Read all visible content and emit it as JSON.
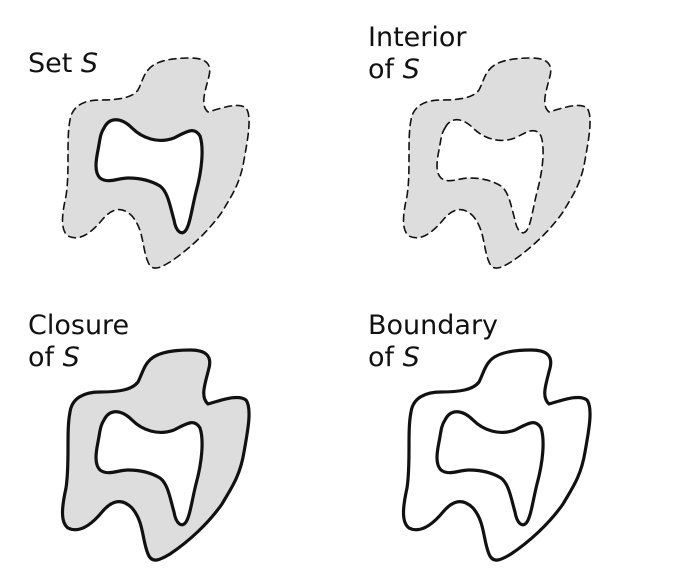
{
  "colors": {
    "fill": "#dddddd",
    "stroke": "#111111",
    "background": "#ffffff"
  },
  "panels": [
    {
      "id": "set",
      "label_lines": [
        {
          "text": "Set ",
          "symbol": "S"
        }
      ],
      "outer_boundary": "dashed",
      "hole_boundary": "solid",
      "filled": true
    },
    {
      "id": "interior",
      "label_lines": [
        {
          "text": "Interior",
          "symbol": ""
        },
        {
          "text": "of ",
          "symbol": "S"
        }
      ],
      "outer_boundary": "dashed",
      "hole_boundary": "dashed",
      "filled": true
    },
    {
      "id": "closure",
      "label_lines": [
        {
          "text": "Closure",
          "symbol": ""
        },
        {
          "text": "of ",
          "symbol": "S"
        }
      ],
      "outer_boundary": "solid",
      "hole_boundary": "solid",
      "filled": true
    },
    {
      "id": "boundary",
      "label_lines": [
        {
          "text": "Boundary",
          "symbol": ""
        },
        {
          "text": "of ",
          "symbol": "S"
        }
      ],
      "outer_boundary": "solid",
      "hole_boundary": "solid",
      "filled": false
    }
  ]
}
